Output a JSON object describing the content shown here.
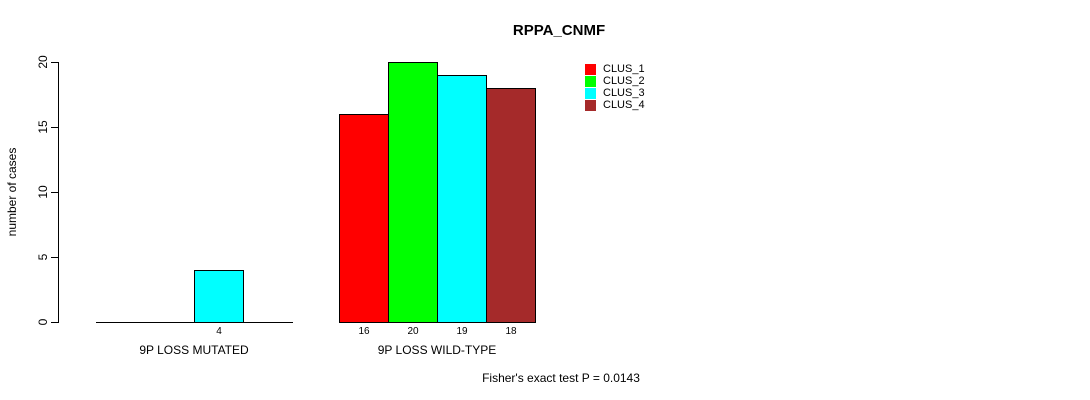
{
  "chart_data": {
    "type": "bar",
    "title": "RPPA_CNMF",
    "xlabel": "",
    "ylabel": "number of cases",
    "ylim": [
      0,
      20
    ],
    "yticks": [
      0,
      5,
      10,
      15,
      20
    ],
    "grid": false,
    "legend_position": "top-right",
    "background_color": "#FFFFFF",
    "bar_border_color": "#000000",
    "series": [
      {
        "name": "CLUS_1",
        "color": "#FF0000"
      },
      {
        "name": "CLUS_2",
        "color": "#00FF00"
      },
      {
        "name": "CLUS_3",
        "color": "#00FFFF"
      },
      {
        "name": "CLUS_4",
        "color": "#A52A2A"
      }
    ],
    "categories": [
      "9P LOSS MUTATED",
      "9P LOSS WILD-TYPE"
    ],
    "groups": [
      {
        "label": "9P LOSS MUTATED",
        "values": [
          0,
          0,
          4,
          0
        ]
      },
      {
        "label": "9P LOSS WILD-TYPE",
        "values": [
          16,
          20,
          19,
          18
        ]
      }
    ],
    "value_label_rule": "shown under each bar with value > 0",
    "footnote": "Fisher's exact test P = 0.0143"
  }
}
